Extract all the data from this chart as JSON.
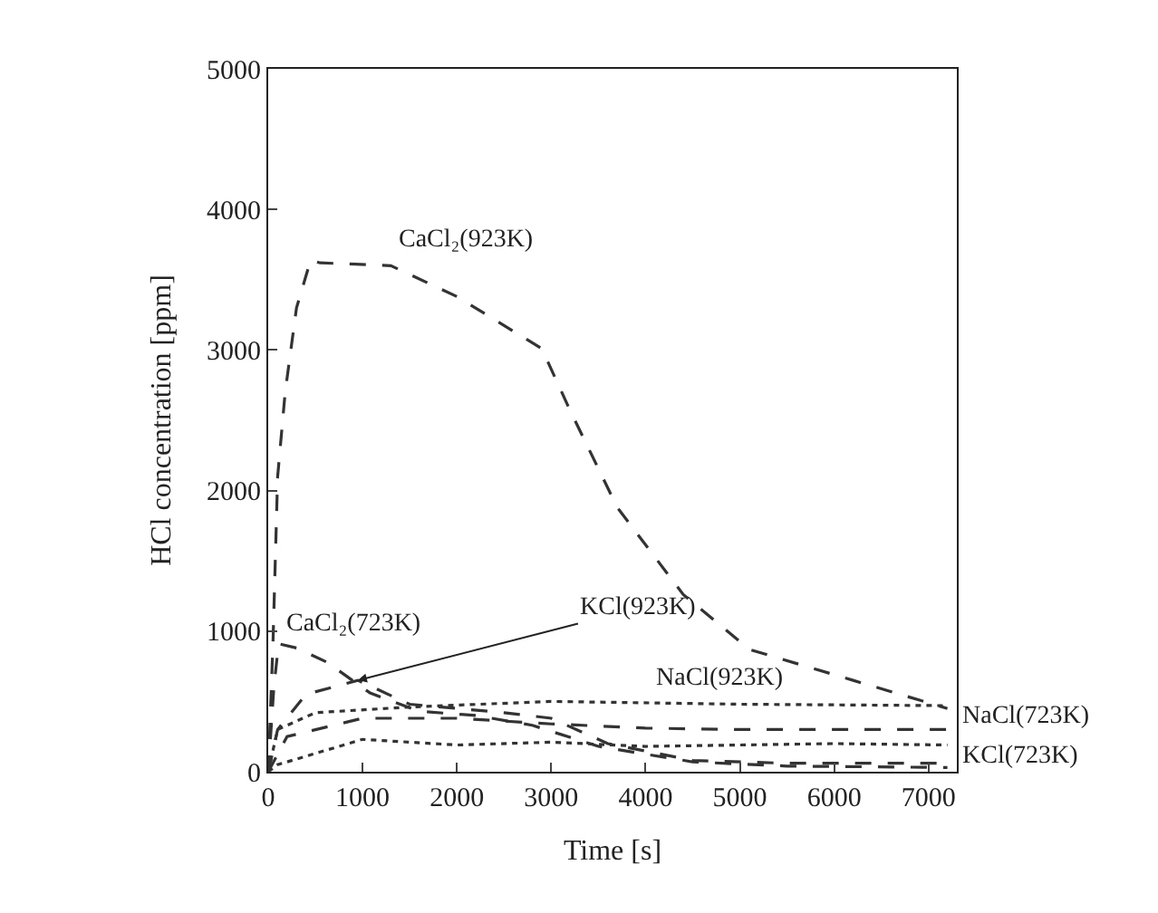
{
  "chart_data": {
    "type": "line",
    "xlabel": "Time [s]",
    "ylabel": "HCl concentration [ppm]",
    "xlim": [
      0,
      7300
    ],
    "ylim": [
      0,
      5000
    ],
    "xticks": [
      0,
      1000,
      2000,
      3000,
      4000,
      5000,
      6000,
      7000
    ],
    "yticks": [
      0,
      1000,
      2000,
      3000,
      4000,
      5000
    ],
    "marker": "none",
    "series": [
      {
        "name": "CaCl₂(923K)",
        "color": "#333333",
        "line_style": "dashed",
        "x": [
          0,
          50,
          100,
          180,
          300,
          450,
          550,
          1300,
          2000,
          2900,
          3200,
          3700,
          4400,
          5100,
          6200,
          7200
        ],
        "values": [
          0,
          900,
          2100,
          2700,
          3300,
          3640,
          3620,
          3600,
          3380,
          3010,
          2570,
          1880,
          1260,
          870,
          650,
          450
        ]
      },
      {
        "name": "CaCl₂(723K)",
        "color": "#333333",
        "line_style": "dashed",
        "x": [
          0,
          60,
          110,
          300,
          620,
          1080,
          1600,
          2200,
          2800,
          3500,
          4500,
          5500,
          7200
        ],
        "values": [
          0,
          600,
          910,
          880,
          780,
          560,
          430,
          400,
          330,
          180,
          70,
          40,
          30
        ]
      },
      {
        "name": "KCl(923K)",
        "color": "#333333",
        "line_style": "dashed",
        "x": [
          0,
          100,
          400,
          950,
          1500,
          2500,
          3000,
          3600,
          4500,
          5500,
          7200
        ],
        "values": [
          0,
          300,
          550,
          650,
          480,
          420,
          380,
          200,
          80,
          60,
          60
        ]
      },
      {
        "name": "NaCl(923K)",
        "color": "#333333",
        "line_style": "dotted",
        "x": [
          0,
          100,
          500,
          1500,
          3000,
          5000,
          7200
        ],
        "values": [
          0,
          300,
          420,
          460,
          500,
          480,
          470
        ]
      },
      {
        "name": "NaCl(723K)",
        "color": "#333333",
        "line_style": "dashed",
        "x": [
          0,
          200,
          1000,
          2000,
          3000,
          4000,
          5000,
          7200
        ],
        "values": [
          0,
          250,
          380,
          380,
          340,
          310,
          300,
          300
        ]
      },
      {
        "name": "KCl(723K)",
        "color": "#333333",
        "line_style": "dotted",
        "x": [
          0,
          100,
          1000,
          2000,
          3000,
          4000,
          5000,
          6000,
          7200
        ],
        "values": [
          0,
          50,
          230,
          190,
          210,
          180,
          190,
          200,
          190
        ]
      }
    ]
  }
}
